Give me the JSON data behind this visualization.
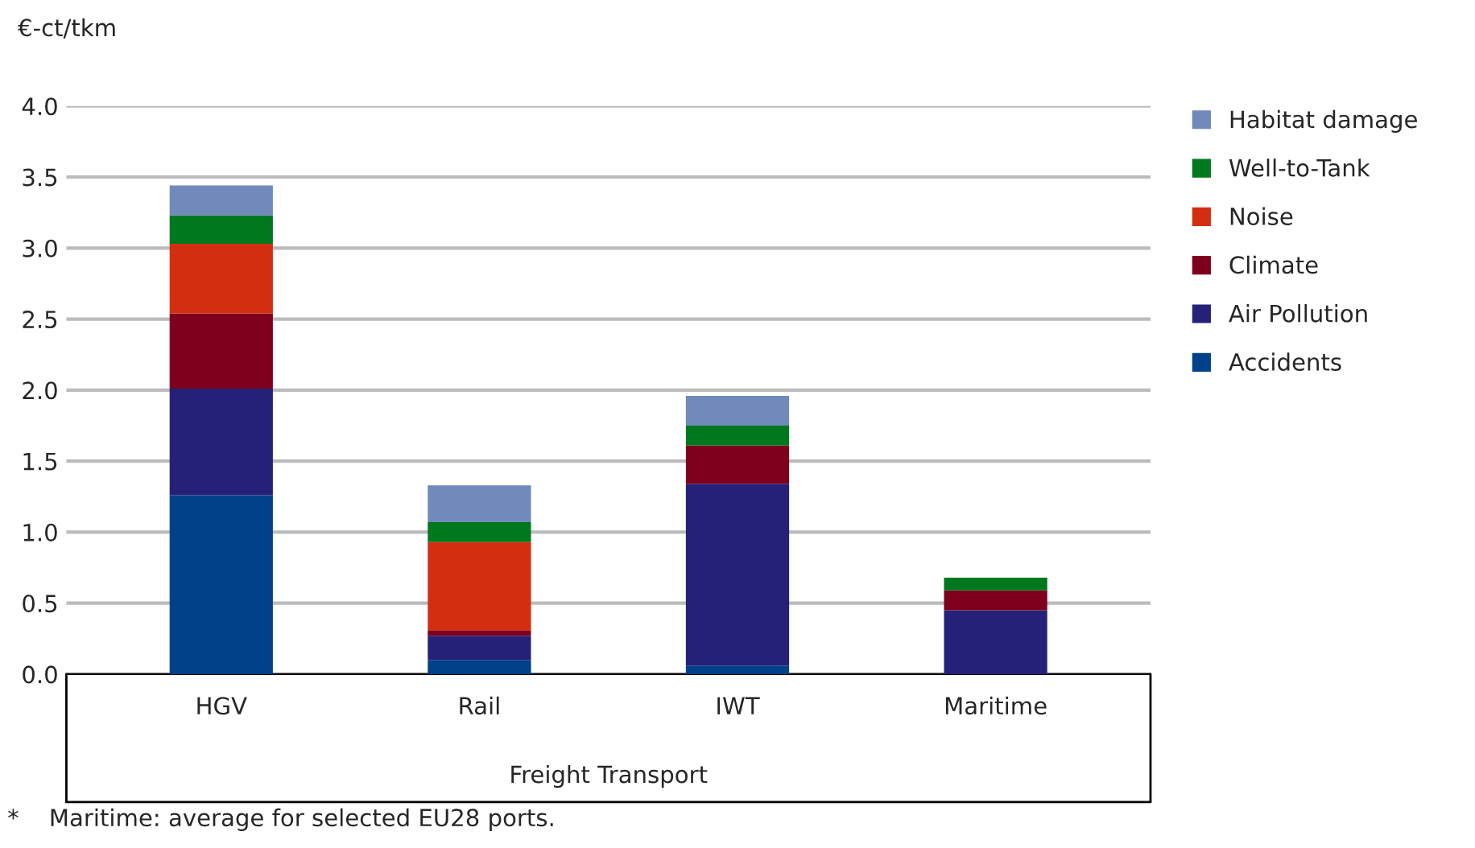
{
  "chart_data": {
    "type": "bar",
    "stacked": true,
    "ylabel": "€-ct/tkm",
    "xlabel": "Freight Transport",
    "categories": [
      "HGV",
      "Rail",
      "IWT",
      "Maritime"
    ],
    "series": [
      {
        "name": "Accidents",
        "color": "#00418a",
        "values": [
          1.26,
          0.1,
          0.06,
          0
        ]
      },
      {
        "name": "Air Pollution",
        "color": "#262178",
        "values": [
          0.75,
          0.17,
          1.28,
          0.45
        ]
      },
      {
        "name": "Climate",
        "color": "#7f001c",
        "values": [
          0.53,
          0.04,
          0.27,
          0.14
        ]
      },
      {
        "name": "Noise",
        "color": "#d42e12",
        "values": [
          0.49,
          0.62,
          0,
          0
        ]
      },
      {
        "name": "Well-to-Tank",
        "color": "#00781e",
        "values": [
          0.2,
          0.14,
          0.14,
          0.09
        ]
      },
      {
        "name": "Habitat damage",
        "color": "#7289bb",
        "values": [
          0.21,
          0.26,
          0.21,
          0
        ]
      }
    ],
    "ylim": [
      0,
      4
    ],
    "yticks": [
      {
        "value": 0,
        "label": "0.0"
      },
      {
        "value": 0.5,
        "label": "0.5"
      },
      {
        "value": 1,
        "label": "1.0"
      },
      {
        "value": 1.5,
        "label": "1.5"
      },
      {
        "value": 2,
        "label": "2.0"
      },
      {
        "value": 2.5,
        "label": "2.5"
      },
      {
        "value": 3,
        "label": "3.0"
      },
      {
        "value": 3.5,
        "label": "3.5"
      },
      {
        "value": 4,
        "label": "4.0"
      }
    ],
    "grid": "y",
    "legend": "right",
    "annotations": [
      "*    Maritime: average for selected EU28 ports."
    ]
  }
}
